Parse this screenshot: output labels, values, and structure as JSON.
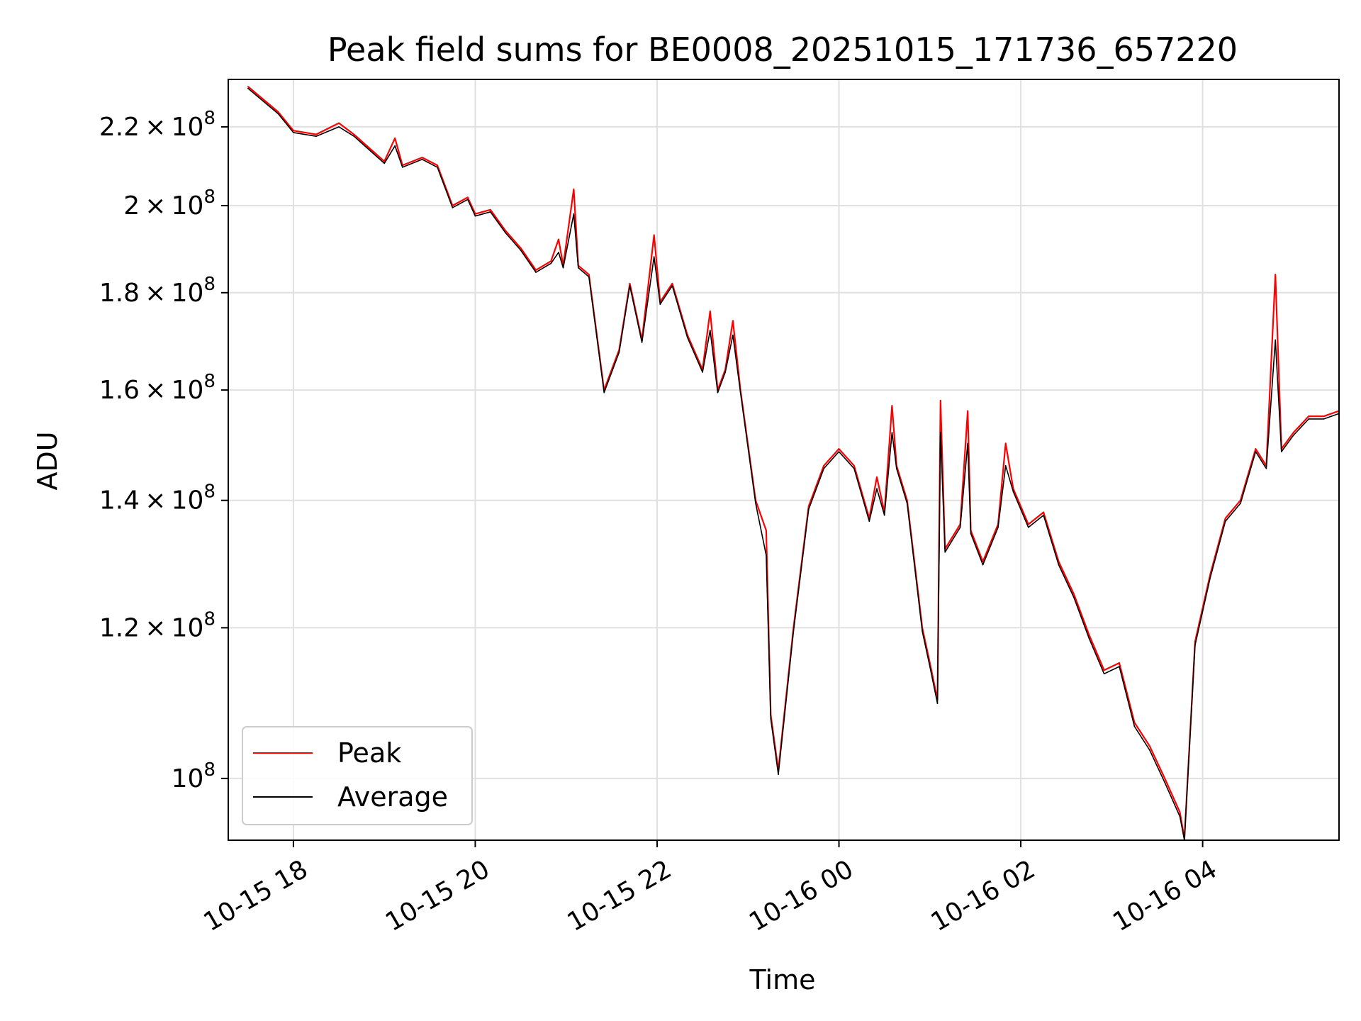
{
  "chart_data": {
    "type": "line",
    "title": "Peak field sums for BE0008_20251015_171736_657220",
    "xlabel": "Time",
    "ylabel": "ADU",
    "y_scale": "log",
    "ylim": [
      92800000,
      233000000
    ],
    "xlim": [
      "2025-10-15 17:17",
      "2025-10-16 05:30"
    ],
    "grid": true,
    "legend_position": "lower-left",
    "x_ticks": [
      "10-15 18",
      "10-15 20",
      "10-15 22",
      "10-16 00",
      "10-16 02",
      "10-16 04"
    ],
    "y_ticks": [
      {
        "value": 100000000,
        "mantissa": "",
        "exponent": "8",
        "base": "10"
      },
      {
        "value": 120000000,
        "mantissa": "1.2",
        "exponent": "8",
        "base": "10"
      },
      {
        "value": 140000000,
        "mantissa": "1.4",
        "exponent": "8",
        "base": "10"
      },
      {
        "value": 160000000,
        "mantissa": "1.6",
        "exponent": "8",
        "base": "10"
      },
      {
        "value": 180000000,
        "mantissa": "1.8",
        "exponent": "8",
        "base": "10"
      },
      {
        "value": 200000000,
        "mantissa": "2",
        "exponent": "8",
        "base": "10"
      },
      {
        "value": 220000000,
        "mantissa": "2.2",
        "exponent": "8",
        "base": "10"
      }
    ],
    "series": [
      {
        "name": "Peak",
        "color": "#ff0000",
        "points": [
          [
            "2025-10-15 17:30",
            231000000
          ],
          [
            "2025-10-15 17:50",
            224000000
          ],
          [
            "2025-10-15 18:00",
            219000000
          ],
          [
            "2025-10-15 18:15",
            218000000
          ],
          [
            "2025-10-15 18:30",
            221000000
          ],
          [
            "2025-10-15 18:40",
            218000000
          ],
          [
            "2025-10-15 19:00",
            211000000
          ],
          [
            "2025-10-15 19:07",
            217000000
          ],
          [
            "2025-10-15 19:12",
            210000000
          ],
          [
            "2025-10-15 19:25",
            212000000
          ],
          [
            "2025-10-15 19:35",
            210000000
          ],
          [
            "2025-10-15 19:45",
            200000000
          ],
          [
            "2025-10-15 19:55",
            202000000
          ],
          [
            "2025-10-15 20:00",
            198000000
          ],
          [
            "2025-10-15 20:10",
            199000000
          ],
          [
            "2025-10-15 20:20",
            194000000
          ],
          [
            "2025-10-15 20:30",
            190000000
          ],
          [
            "2025-10-15 20:40",
            185000000
          ],
          [
            "2025-10-15 20:50",
            187000000
          ],
          [
            "2025-10-15 20:55",
            192000000
          ],
          [
            "2025-10-15 20:58",
            186000000
          ],
          [
            "2025-10-15 21:05",
            204000000
          ],
          [
            "2025-10-15 21:08",
            186000000
          ],
          [
            "2025-10-15 21:15",
            184000000
          ],
          [
            "2025-10-15 21:25",
            160000000
          ],
          [
            "2025-10-15 21:35",
            168000000
          ],
          [
            "2025-10-15 21:42",
            182000000
          ],
          [
            "2025-10-15 21:50",
            170000000
          ],
          [
            "2025-10-15 21:58",
            193000000
          ],
          [
            "2025-10-15 22:02",
            178000000
          ],
          [
            "2025-10-15 22:10",
            182000000
          ],
          [
            "2025-10-15 22:20",
            171000000
          ],
          [
            "2025-10-15 22:30",
            164000000
          ],
          [
            "2025-10-15 22:35",
            176000000
          ],
          [
            "2025-10-15 22:40",
            160000000
          ],
          [
            "2025-10-15 22:45",
            164000000
          ],
          [
            "2025-10-15 22:50",
            174000000
          ],
          [
            "2025-10-15 22:55",
            160000000
          ],
          [
            "2025-10-15 23:05",
            140000000
          ],
          [
            "2025-10-15 23:12",
            135000000
          ],
          [
            "2025-10-15 23:15",
            108000000
          ],
          [
            "2025-10-15 23:20",
            101000000
          ],
          [
            "2025-10-15 23:30",
            120000000
          ],
          [
            "2025-10-15 23:40",
            139000000
          ],
          [
            "2025-10-15 23:50",
            146000000
          ],
          [
            "2025-10-16 00:00",
            149000000
          ],
          [
            "2025-10-16 00:10",
            146000000
          ],
          [
            "2025-10-16 00:20",
            137000000
          ],
          [
            "2025-10-16 00:25",
            144000000
          ],
          [
            "2025-10-16 00:30",
            138000000
          ],
          [
            "2025-10-16 00:35",
            157000000
          ],
          [
            "2025-10-16 00:38",
            146000000
          ],
          [
            "2025-10-16 00:45",
            140000000
          ],
          [
            "2025-10-16 00:55",
            120000000
          ],
          [
            "2025-10-16 01:00",
            115000000
          ],
          [
            "2025-10-16 01:05",
            110000000
          ],
          [
            "2025-10-16 01:07",
            158000000
          ],
          [
            "2025-10-16 01:10",
            132000000
          ],
          [
            "2025-10-16 01:20",
            136000000
          ],
          [
            "2025-10-16 01:25",
            156000000
          ],
          [
            "2025-10-16 01:27",
            135000000
          ],
          [
            "2025-10-16 01:35",
            130000000
          ],
          [
            "2025-10-16 01:45",
            136000000
          ],
          [
            "2025-10-16 01:50",
            150000000
          ],
          [
            "2025-10-16 01:55",
            142000000
          ],
          [
            "2025-10-16 02:05",
            136000000
          ],
          [
            "2025-10-16 02:15",
            138000000
          ],
          [
            "2025-10-16 02:25",
            130000000
          ],
          [
            "2025-10-16 02:35",
            125000000
          ],
          [
            "2025-10-16 02:45",
            119000000
          ],
          [
            "2025-10-16 02:55",
            114000000
          ],
          [
            "2025-10-16 03:05",
            115000000
          ],
          [
            "2025-10-16 03:15",
            107000000
          ],
          [
            "2025-10-16 03:25",
            104000000
          ],
          [
            "2025-10-16 03:35",
            100000000
          ],
          [
            "2025-10-16 03:45",
            96000000
          ],
          [
            "2025-10-16 03:48",
            93000000
          ],
          [
            "2025-10-16 03:55",
            118000000
          ],
          [
            "2025-10-16 04:05",
            128000000
          ],
          [
            "2025-10-16 04:15",
            137000000
          ],
          [
            "2025-10-16 04:25",
            140000000
          ],
          [
            "2025-10-16 04:35",
            149000000
          ],
          [
            "2025-10-16 04:42",
            146000000
          ],
          [
            "2025-10-16 04:48",
            184000000
          ],
          [
            "2025-10-16 04:52",
            149000000
          ],
          [
            "2025-10-16 05:00",
            152000000
          ],
          [
            "2025-10-16 05:10",
            155000000
          ],
          [
            "2025-10-16 05:20",
            155000000
          ],
          [
            "2025-10-16 05:30",
            156000000
          ]
        ]
      },
      {
        "name": "Average",
        "color": "#000000",
        "points": [
          [
            "2025-10-15 17:30",
            230500000
          ],
          [
            "2025-10-15 17:50",
            223500000
          ],
          [
            "2025-10-15 18:00",
            218500000
          ],
          [
            "2025-10-15 18:15",
            217500000
          ],
          [
            "2025-10-15 18:30",
            220000000
          ],
          [
            "2025-10-15 18:40",
            217500000
          ],
          [
            "2025-10-15 19:00",
            210500000
          ],
          [
            "2025-10-15 19:07",
            215000000
          ],
          [
            "2025-10-15 19:12",
            209500000
          ],
          [
            "2025-10-15 19:25",
            211500000
          ],
          [
            "2025-10-15 19:35",
            209500000
          ],
          [
            "2025-10-15 19:45",
            199500000
          ],
          [
            "2025-10-15 19:55",
            201500000
          ],
          [
            "2025-10-15 20:00",
            197500000
          ],
          [
            "2025-10-15 20:10",
            198500000
          ],
          [
            "2025-10-15 20:20",
            193500000
          ],
          [
            "2025-10-15 20:30",
            189500000
          ],
          [
            "2025-10-15 20:40",
            184500000
          ],
          [
            "2025-10-15 20:50",
            186500000
          ],
          [
            "2025-10-15 20:55",
            189000000
          ],
          [
            "2025-10-15 20:58",
            185500000
          ],
          [
            "2025-10-15 21:05",
            198000000
          ],
          [
            "2025-10-15 21:08",
            185500000
          ],
          [
            "2025-10-15 21:15",
            183500000
          ],
          [
            "2025-10-15 21:25",
            159500000
          ],
          [
            "2025-10-15 21:35",
            167500000
          ],
          [
            "2025-10-15 21:42",
            181500000
          ],
          [
            "2025-10-15 21:50",
            169500000
          ],
          [
            "2025-10-15 21:58",
            188000000
          ],
          [
            "2025-10-15 22:02",
            177500000
          ],
          [
            "2025-10-15 22:10",
            181500000
          ],
          [
            "2025-10-15 22:20",
            170500000
          ],
          [
            "2025-10-15 22:30",
            163500000
          ],
          [
            "2025-10-15 22:35",
            172000000
          ],
          [
            "2025-10-15 22:40",
            159500000
          ],
          [
            "2025-10-15 22:45",
            163500000
          ],
          [
            "2025-10-15 22:50",
            171000000
          ],
          [
            "2025-10-15 22:55",
            159500000
          ],
          [
            "2025-10-15 23:05",
            139500000
          ],
          [
            "2025-10-15 23:12",
            131000000
          ],
          [
            "2025-10-15 23:15",
            107500000
          ],
          [
            "2025-10-15 23:20",
            100500000
          ],
          [
            "2025-10-15 23:30",
            119500000
          ],
          [
            "2025-10-15 23:40",
            138500000
          ],
          [
            "2025-10-15 23:50",
            145500000
          ],
          [
            "2025-10-16 00:00",
            148500000
          ],
          [
            "2025-10-16 00:10",
            145500000
          ],
          [
            "2025-10-16 00:20",
            136500000
          ],
          [
            "2025-10-16 00:25",
            142000000
          ],
          [
            "2025-10-16 00:30",
            137500000
          ],
          [
            "2025-10-16 00:35",
            152000000
          ],
          [
            "2025-10-16 00:38",
            145500000
          ],
          [
            "2025-10-16 00:45",
            139500000
          ],
          [
            "2025-10-16 00:55",
            119500000
          ],
          [
            "2025-10-16 01:00",
            114500000
          ],
          [
            "2025-10-16 01:05",
            109500000
          ],
          [
            "2025-10-16 01:07",
            152000000
          ],
          [
            "2025-10-16 01:10",
            131500000
          ],
          [
            "2025-10-16 01:20",
            135500000
          ],
          [
            "2025-10-16 01:25",
            150000000
          ],
          [
            "2025-10-16 01:27",
            134500000
          ],
          [
            "2025-10-16 01:35",
            129500000
          ],
          [
            "2025-10-16 01:45",
            135500000
          ],
          [
            "2025-10-16 01:50",
            146000000
          ],
          [
            "2025-10-16 01:55",
            141500000
          ],
          [
            "2025-10-16 02:05",
            135500000
          ],
          [
            "2025-10-16 02:15",
            137500000
          ],
          [
            "2025-10-16 02:25",
            129500000
          ],
          [
            "2025-10-16 02:35",
            124500000
          ],
          [
            "2025-10-16 02:45",
            118500000
          ],
          [
            "2025-10-16 02:55",
            113500000
          ],
          [
            "2025-10-16 03:05",
            114500000
          ],
          [
            "2025-10-16 03:15",
            106500000
          ],
          [
            "2025-10-16 03:25",
            103500000
          ],
          [
            "2025-10-16 03:35",
            99500000
          ],
          [
            "2025-10-16 03:45",
            95500000
          ],
          [
            "2025-10-16 03:48",
            92800000
          ],
          [
            "2025-10-16 03:55",
            117500000
          ],
          [
            "2025-10-16 04:05",
            127500000
          ],
          [
            "2025-10-16 04:15",
            136500000
          ],
          [
            "2025-10-16 04:25",
            139500000
          ],
          [
            "2025-10-16 04:35",
            148500000
          ],
          [
            "2025-10-16 04:42",
            145500000
          ],
          [
            "2025-10-16 04:48",
            170000000
          ],
          [
            "2025-10-16 04:52",
            148500000
          ],
          [
            "2025-10-16 05:00",
            151500000
          ],
          [
            "2025-10-16 05:10",
            154500000
          ],
          [
            "2025-10-16 05:20",
            154500000
          ],
          [
            "2025-10-16 05:30",
            155500000
          ]
        ]
      }
    ]
  }
}
